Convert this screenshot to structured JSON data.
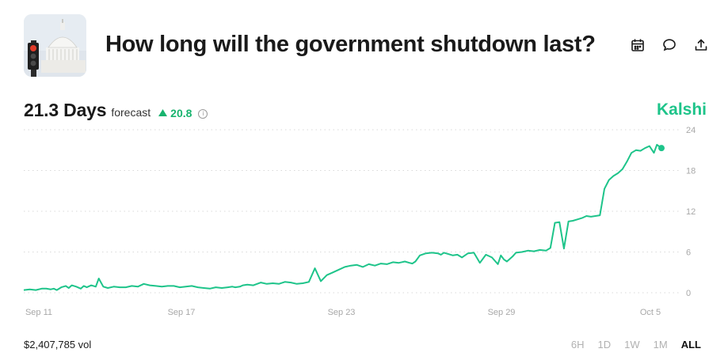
{
  "header": {
    "title": "How long will the government shutdown last?",
    "actions": [
      "calendar-icon",
      "comment-icon",
      "share-icon"
    ]
  },
  "forecast": {
    "value": "21.3 Days",
    "label": "forecast",
    "change": "20.8",
    "change_direction": "up"
  },
  "brand": "Kalshi",
  "colors": {
    "accent": "#1ec48a",
    "up": "#18b36e",
    "muted": "#a8a8a8"
  },
  "footer": {
    "volume": "$2,407,785 vol",
    "ranges": [
      "6H",
      "1D",
      "1W",
      "1M",
      "ALL"
    ],
    "active_range": "ALL"
  },
  "chart_data": {
    "type": "line",
    "x_ticks": [
      "Sep 11",
      "Sep 17",
      "Sep 23",
      "Sep 29",
      "Oct 5"
    ],
    "y_ticks": [
      0,
      6,
      12,
      18,
      24
    ],
    "ylim": [
      0,
      24
    ],
    "grid": true,
    "series": [
      {
        "x": [
          0,
          0.4,
          0.8,
          1.2,
          1.5,
          1.8,
          2.0,
          2.2,
          2.5,
          2.8,
          3.0,
          3.2,
          3.5,
          3.8,
          4.0,
          4.2,
          4.5,
          4.8,
          5.0,
          5.3,
          5.6,
          6.0,
          6.4,
          6.8,
          7.2,
          7.6,
          8.0,
          8.4,
          8.8,
          9.2,
          9.6,
          10.0,
          10.4,
          10.8,
          11.2,
          11.6,
          12.0,
          12.4,
          12.8,
          13.2,
          13.6,
          13.9,
          14.1,
          14.4,
          14.6,
          14.9,
          15.3,
          15.8,
          16.2,
          16.6,
          17.0,
          17.4,
          17.8,
          18.2,
          18.6,
          19.0,
          19.4,
          19.8,
          20.2,
          20.6,
          21.0,
          21.4,
          21.8,
          22.2,
          22.6,
          23.0,
          23.4,
          23.8,
          24.2,
          24.6,
          25.0,
          25.4,
          25.7,
          25.9,
          26.1,
          26.4,
          26.8,
          27.2,
          27.6,
          27.8,
          28.0,
          28.3,
          28.6,
          28.9,
          29.2,
          29.6,
          30.0,
          30.4,
          30.8,
          31.2,
          31.6,
          31.8,
          32.0,
          32.2,
          32.4,
          32.6,
          32.8,
          33.2,
          33.6,
          34.0,
          34.4,
          34.8,
          35.1,
          35.4,
          35.7,
          36.0,
          36.3,
          36.6,
          36.9,
          37.2,
          37.5,
          37.8,
          38.1,
          38.4,
          38.7,
          39.0,
          39.3,
          39.6,
          39.9,
          40.2,
          40.5
        ],
        "y": [
          0.4,
          0.5,
          0.4,
          0.6,
          0.6,
          0.5,
          0.6,
          0.4,
          0.8,
          1.0,
          0.7,
          1.1,
          0.9,
          0.6,
          1.0,
          0.8,
          1.1,
          0.9,
          2.1,
          0.9,
          0.7,
          0.9,
          0.8,
          0.8,
          1.0,
          0.9,
          1.3,
          1.1,
          1.0,
          0.9,
          1.0,
          1.0,
          0.8,
          0.9,
          1.0,
          0.8,
          0.7,
          0.6,
          0.8,
          0.7,
          0.8,
          0.9,
          0.8,
          0.9,
          1.1,
          1.2,
          1.1,
          1.5,
          1.3,
          1.4,
          1.3,
          1.6,
          1.5,
          1.3,
          1.4,
          1.6,
          3.6,
          1.7,
          2.6,
          3.0,
          3.4,
          3.8,
          4.0,
          4.1,
          3.8,
          4.2,
          4.0,
          4.3,
          4.2,
          4.5,
          4.4,
          4.6,
          4.4,
          4.3,
          4.6,
          5.5,
          5.8,
          5.9,
          5.8,
          5.6,
          5.9,
          5.7,
          5.5,
          5.6,
          5.2,
          5.8,
          5.9,
          4.4,
          5.6,
          5.2,
          4.2,
          5.5,
          4.9,
          4.6,
          5.0,
          5.4,
          5.9,
          6.0,
          6.2,
          6.1,
          6.3,
          6.2,
          6.6,
          10.3,
          10.4,
          6.5,
          10.5,
          10.6,
          10.8,
          11.0,
          11.3,
          11.2,
          11.3,
          11.4,
          15.3,
          16.6,
          17.2,
          17.6,
          18.2,
          19.3,
          20.6
        ],
        "x_end": [
          40.8,
          41.1,
          41.4,
          41.7,
          42.0,
          42.2,
          42.5
        ],
        "y_end": [
          21.0,
          20.9,
          21.3,
          21.6,
          20.6,
          21.8,
          21.3
        ]
      }
    ]
  }
}
